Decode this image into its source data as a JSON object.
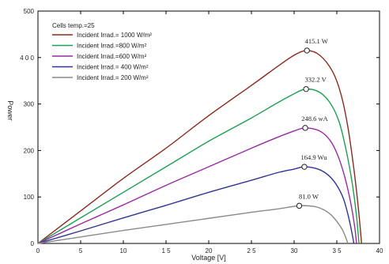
{
  "chart_data": {
    "type": "line",
    "title": "",
    "xlabel": "Voltage [V]",
    "ylabel": "Power",
    "xlim": [
      0,
      40
    ],
    "ylim": [
      0,
      500
    ],
    "x_ticks": [
      {
        "value": 0,
        "label": "0"
      },
      {
        "value": 5,
        "label": "5"
      },
      {
        "value": 10,
        "label": "10"
      },
      {
        "value": 15,
        "label": "1 5"
      },
      {
        "value": 20,
        "label": "20"
      },
      {
        "value": 25,
        "label": "2 5"
      },
      {
        "value": 30,
        "label": "30"
      },
      {
        "value": 35,
        "label": "3 5"
      },
      {
        "value": 40,
        "label": "40"
      }
    ],
    "y_ticks": [
      {
        "value": 0,
        "label": "0"
      },
      {
        "value": 100,
        "label": "100"
      },
      {
        "value": 200,
        "label": "200"
      },
      {
        "value": 300,
        "label": "300"
      },
      {
        "value": 400,
        "label": "4 0 0"
      },
      {
        "value": 500,
        "label": "500"
      }
    ],
    "grid": false,
    "legend_position": "top-left",
    "legend_title": "Cells temp.=25",
    "series": [
      {
        "name": "Incident Irrad.= 1000 W/m²",
        "color": "#8b2a1e",
        "points": [
          [
            0,
            0
          ],
          [
            5,
            70
          ],
          [
            10,
            140
          ],
          [
            15,
            205
          ],
          [
            20,
            275
          ],
          [
            25,
            340
          ],
          [
            28,
            380
          ],
          [
            30,
            405
          ],
          [
            31.5,
            415.1
          ],
          [
            33,
            405
          ],
          [
            34.5,
            370
          ],
          [
            35.5,
            320
          ],
          [
            36.3,
            250
          ],
          [
            37,
            160
          ],
          [
            37.5,
            80
          ],
          [
            37.9,
            0
          ]
        ],
        "peak": {
          "v": 31.5,
          "p": 415.1,
          "label": "415.1 W"
        }
      },
      {
        "name": "Incident Irrad.=800 W/m²",
        "color": "#1ba152",
        "points": [
          [
            0,
            0
          ],
          [
            5,
            55
          ],
          [
            10,
            110
          ],
          [
            15,
            165
          ],
          [
            20,
            220
          ],
          [
            25,
            270
          ],
          [
            28,
            302
          ],
          [
            30,
            322
          ],
          [
            31.4,
            332.2
          ],
          [
            33,
            325
          ],
          [
            34.3,
            300
          ],
          [
            35.3,
            260
          ],
          [
            36.1,
            200
          ],
          [
            36.8,
            130
          ],
          [
            37.3,
            60
          ],
          [
            37.6,
            0
          ]
        ],
        "peak": {
          "v": 31.4,
          "p": 332.2,
          "label": "332.2 V"
        }
      },
      {
        "name": "Incident Irrad.=600 W/m²",
        "color": "#9a2aa4",
        "points": [
          [
            0,
            0
          ],
          [
            5,
            42
          ],
          [
            10,
            83
          ],
          [
            15,
            125
          ],
          [
            20,
            165
          ],
          [
            25,
            205
          ],
          [
            28,
            228
          ],
          [
            30,
            242
          ],
          [
            31.3,
            248.6
          ],
          [
            33,
            242
          ],
          [
            34.2,
            222
          ],
          [
            35.1,
            190
          ],
          [
            35.9,
            145
          ],
          [
            36.6,
            90
          ],
          [
            37.1,
            35
          ],
          [
            37.3,
            0
          ]
        ],
        "peak": {
          "v": 31.3,
          "p": 248.6,
          "label": "248.6 wA"
        }
      },
      {
        "name": "Incident Irrad.= 400 W/m²",
        "color": "#2f3592",
        "points": [
          [
            0,
            0
          ],
          [
            5,
            27
          ],
          [
            10,
            55
          ],
          [
            15,
            82
          ],
          [
            20,
            110
          ],
          [
            25,
            136
          ],
          [
            28,
            152
          ],
          [
            30,
            160
          ],
          [
            31.2,
            164.9
          ],
          [
            32.8,
            160
          ],
          [
            34,
            147
          ],
          [
            35,
            125
          ],
          [
            35.8,
            95
          ],
          [
            36.4,
            55
          ],
          [
            36.8,
            20
          ],
          [
            37,
            0
          ]
        ],
        "peak": {
          "v": 31.2,
          "p": 164.9,
          "label": "164.9 Wu"
        }
      },
      {
        "name": "Incident Irrad.= 200 W/m²",
        "color": "#8a8a8a",
        "points": [
          [
            0,
            0
          ],
          [
            5,
            14
          ],
          [
            10,
            28
          ],
          [
            15,
            41
          ],
          [
            20,
            54
          ],
          [
            25,
            67
          ],
          [
            28,
            74
          ],
          [
            30.5,
            81
          ],
          [
            32.2,
            80
          ],
          [
            33.3,
            74
          ],
          [
            34.3,
            62
          ],
          [
            35.1,
            45
          ],
          [
            35.7,
            28
          ],
          [
            36.1,
            10
          ],
          [
            36.3,
            0
          ]
        ],
        "peak": {
          "v": 30.6,
          "p": 81.0,
          "label": "81.0 W"
        }
      }
    ]
  }
}
